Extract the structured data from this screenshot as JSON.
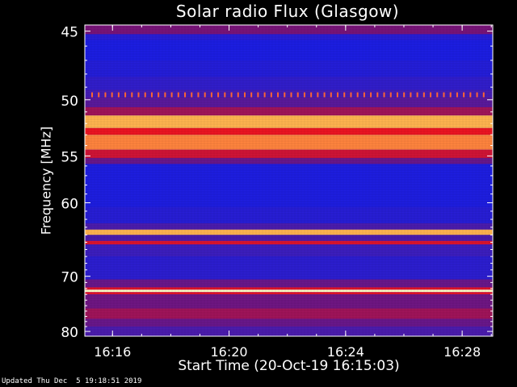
{
  "chart_data": {
    "type": "heatmap",
    "title": "Solar radio Flux (Glasgow)",
    "xlabel": "Start Time (20-Oct-19 16:15:03)",
    "ylabel": "Frequency [MHz]",
    "x_ticks": [
      "16:16",
      "16:20",
      "16:24",
      "16:28"
    ],
    "x_tick_minutes": [
      0.95,
      4.95,
      8.95,
      12.95
    ],
    "x_range_minutes": [
      0,
      14.0
    ],
    "y_ticks": [
      45,
      50,
      55,
      60,
      70,
      80
    ],
    "y_range": [
      44.6,
      81.0
    ],
    "y_scale": "reciprocal",
    "colors": {
      "background": "#1a1ad8",
      "hot": "#ff1010",
      "peak": "#ffffb0"
    },
    "bands": [
      {
        "from": 44.6,
        "to": 45.2,
        "level": 0.45
      },
      {
        "from": 45.2,
        "to": 45.6,
        "level": 0.12
      },
      {
        "from": 45.6,
        "to": 47.0,
        "level": 0.05
      },
      {
        "from": 47.0,
        "to": 48.2,
        "level": 0.1
      },
      {
        "from": 48.2,
        "to": 49.2,
        "level": 0.18
      },
      {
        "from": 49.2,
        "to": 49.8,
        "level": 0.28
      },
      {
        "from": 49.8,
        "to": 50.6,
        "level": 0.35
      },
      {
        "from": 50.6,
        "to": 51.3,
        "level": 0.55
      },
      {
        "from": 51.3,
        "to": 52.4,
        "level": 0.95
      },
      {
        "from": 52.4,
        "to": 53.0,
        "level": 0.78
      },
      {
        "from": 53.0,
        "to": 54.4,
        "level": 0.92
      },
      {
        "from": 54.4,
        "to": 55.2,
        "level": 0.68
      },
      {
        "from": 55.2,
        "to": 55.8,
        "level": 0.4
      },
      {
        "from": 55.8,
        "to": 60.5,
        "level": 0.06
      },
      {
        "from": 60.5,
        "to": 62.5,
        "level": 0.12
      },
      {
        "from": 62.5,
        "to": 63.3,
        "level": 0.3
      },
      {
        "from": 63.3,
        "to": 64.0,
        "level": 0.95
      },
      {
        "from": 64.0,
        "to": 64.8,
        "level": 0.3
      },
      {
        "from": 64.8,
        "to": 65.3,
        "level": 0.72
      },
      {
        "from": 65.3,
        "to": 67.0,
        "level": 0.25
      },
      {
        "from": 67.0,
        "to": 70.5,
        "level": 0.15
      },
      {
        "from": 70.5,
        "to": 71.8,
        "level": 0.4
      },
      {
        "from": 71.8,
        "to": 72.2,
        "level": 0.75
      },
      {
        "from": 72.2,
        "to": 72.6,
        "level": 1.0
      },
      {
        "from": 72.6,
        "to": 73.0,
        "level": 0.75
      },
      {
        "from": 73.0,
        "to": 75.5,
        "level": 0.42
      },
      {
        "from": 75.5,
        "to": 77.5,
        "level": 0.55
      },
      {
        "from": 77.5,
        "to": 79.0,
        "level": 0.4
      },
      {
        "from": 79.0,
        "to": 81.0,
        "level": 0.3
      }
    ],
    "bursts": {
      "frequency": 49.6,
      "count": 60,
      "level": 0.9
    }
  },
  "footer": "Updated Thu Dec  5 19:18:51 2019"
}
